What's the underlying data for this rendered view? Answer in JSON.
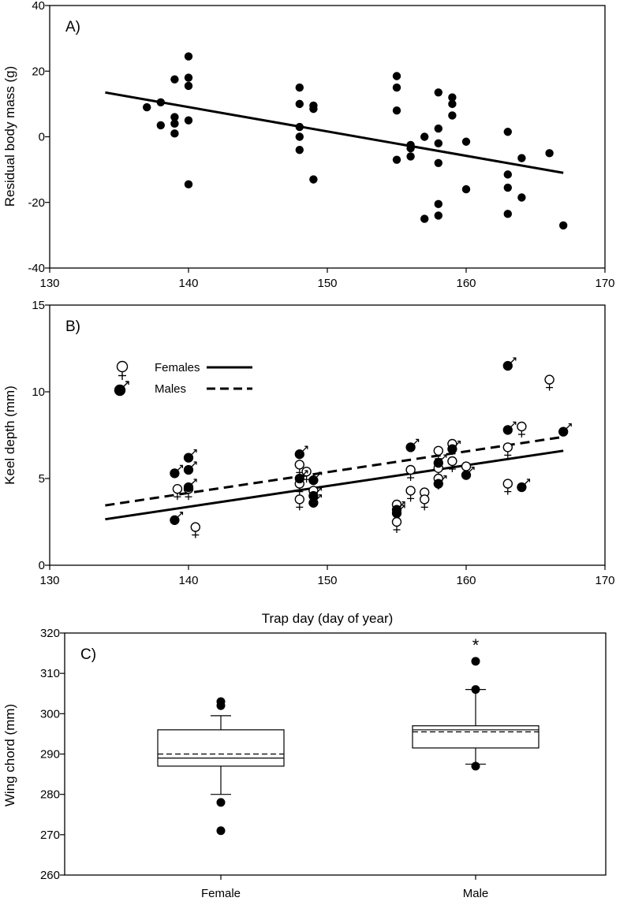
{
  "chart_data": [
    {
      "panel": "A)",
      "type": "scatter",
      "xlim": [
        130,
        170
      ],
      "ylim": [
        -40,
        40
      ],
      "xticks": [
        "130",
        "140",
        "150",
        "160",
        "170"
      ],
      "yticks": [
        "-40",
        "-20",
        "0",
        "20",
        "40"
      ],
      "xlabel": "",
      "ylabel": "Residual body mass (g)",
      "points": [
        [
          137,
          9
        ],
        [
          138,
          10.5
        ],
        [
          138,
          3.5
        ],
        [
          139,
          17.5
        ],
        [
          139,
          6
        ],
        [
          139,
          4
        ],
        [
          139,
          1
        ],
        [
          140,
          24.5
        ],
        [
          140,
          18
        ],
        [
          140,
          15.5
        ],
        [
          140,
          5
        ],
        [
          140,
          -14.5
        ],
        [
          148,
          15
        ],
        [
          148,
          10
        ],
        [
          148,
          3
        ],
        [
          148,
          0
        ],
        [
          148,
          -4
        ],
        [
          149,
          9.5
        ],
        [
          149,
          8.5
        ],
        [
          149,
          -13
        ],
        [
          155,
          18.5
        ],
        [
          155,
          15
        ],
        [
          155,
          8
        ],
        [
          155,
          -7
        ],
        [
          156,
          -2.5
        ],
        [
          156,
          -3.5
        ],
        [
          156,
          -6
        ],
        [
          157,
          0
        ],
        [
          157,
          -25
        ],
        [
          158,
          13.5
        ],
        [
          158,
          2.5
        ],
        [
          158,
          -2
        ],
        [
          158,
          -8
        ],
        [
          158,
          -20.5
        ],
        [
          158,
          -24
        ],
        [
          159,
          12
        ],
        [
          159,
          10
        ],
        [
          159,
          6.5
        ],
        [
          160,
          -1.5
        ],
        [
          160,
          -16
        ],
        [
          163,
          1.5
        ],
        [
          163,
          -11.5
        ],
        [
          163,
          -15.5
        ],
        [
          163,
          -23.5
        ],
        [
          164,
          -6.5
        ],
        [
          164,
          -18.5
        ],
        [
          166,
          -5
        ],
        [
          167,
          -27
        ]
      ],
      "fit": {
        "x": [
          134,
          167
        ],
        "y": [
          13.5,
          -11
        ]
      }
    },
    {
      "panel": "B)",
      "type": "scatter",
      "xlim": [
        130,
        170
      ],
      "ylim": [
        0,
        15
      ],
      "xticks": [
        "130",
        "140",
        "150",
        "160",
        "170"
      ],
      "yticks": [
        "0",
        "5",
        "10",
        "15"
      ],
      "xlabel": "Trap day (day of year)",
      "ylabel": "Keel depth (mm)",
      "legend": [
        {
          "name": "Females",
          "symbol": "♀",
          "line": "solid"
        },
        {
          "name": "Males",
          "symbol": "♂",
          "line": "dashed"
        }
      ],
      "series": [
        {
          "name": "Females",
          "points": [
            [
              139.2,
              4.4
            ],
            [
              140,
              4.4
            ],
            [
              140.5,
              2.2
            ],
            [
              148,
              5.8
            ],
            [
              148,
              4.7
            ],
            [
              148,
              3.8
            ],
            [
              148.5,
              5.4
            ],
            [
              149,
              4.3
            ],
            [
              155,
              3.5
            ],
            [
              155,
              2.5
            ],
            [
              156,
              5.5
            ],
            [
              156,
              4.3
            ],
            [
              157,
              4.2
            ],
            [
              157,
              3.8
            ],
            [
              158,
              6.6
            ],
            [
              158,
              5.6
            ],
            [
              158,
              5.0
            ],
            [
              159,
              7.0
            ],
            [
              159,
              6.0
            ],
            [
              160,
              5.7
            ],
            [
              163,
              6.8
            ],
            [
              163,
              4.7
            ],
            [
              164,
              8.0
            ],
            [
              166,
              10.7
            ]
          ],
          "fit": {
            "x": [
              134,
              167
            ],
            "y": [
              2.65,
              6.6
            ]
          }
        },
        {
          "name": "Males",
          "points": [
            [
              139,
              5.3
            ],
            [
              139,
              2.6
            ],
            [
              140,
              6.2
            ],
            [
              140,
              5.5
            ],
            [
              140,
              4.5
            ],
            [
              148,
              6.4
            ],
            [
              148,
              5.0
            ],
            [
              149,
              4.9
            ],
            [
              149,
              4.0
            ],
            [
              149,
              3.6
            ],
            [
              155,
              3.2
            ],
            [
              155,
              3.0
            ],
            [
              156,
              6.8
            ],
            [
              158,
              5.9
            ],
            [
              158,
              4.7
            ],
            [
              159,
              6.7
            ],
            [
              160,
              5.2
            ],
            [
              163,
              11.5
            ],
            [
              163,
              7.8
            ],
            [
              164,
              4.5
            ],
            [
              167,
              7.7
            ]
          ],
          "fit": {
            "x": [
              134,
              167
            ],
            "y": [
              3.45,
              7.4
            ]
          }
        }
      ]
    },
    {
      "panel": "C)",
      "type": "box",
      "ylim": [
        260,
        320
      ],
      "yticks": [
        "260",
        "270",
        "280",
        "290",
        "300",
        "310",
        "320"
      ],
      "ylabel": "Wing chord (mm)",
      "categories": [
        "Female",
        "Male"
      ],
      "boxes": [
        {
          "name": "Female",
          "whisker_low": 280,
          "q1": 287,
          "median": 289,
          "mean": 290,
          "q3": 296,
          "whisker_high": 299.5,
          "outliers": [
            303,
            302,
            278,
            271
          ]
        },
        {
          "name": "Male",
          "whisker_low": 287.5,
          "q1": 291.5,
          "median": 296,
          "mean": 295.5,
          "q3": 297,
          "whisker_high": 306,
          "outliers": [
            313,
            306,
            287
          ]
        }
      ],
      "annotation": "*"
    }
  ]
}
